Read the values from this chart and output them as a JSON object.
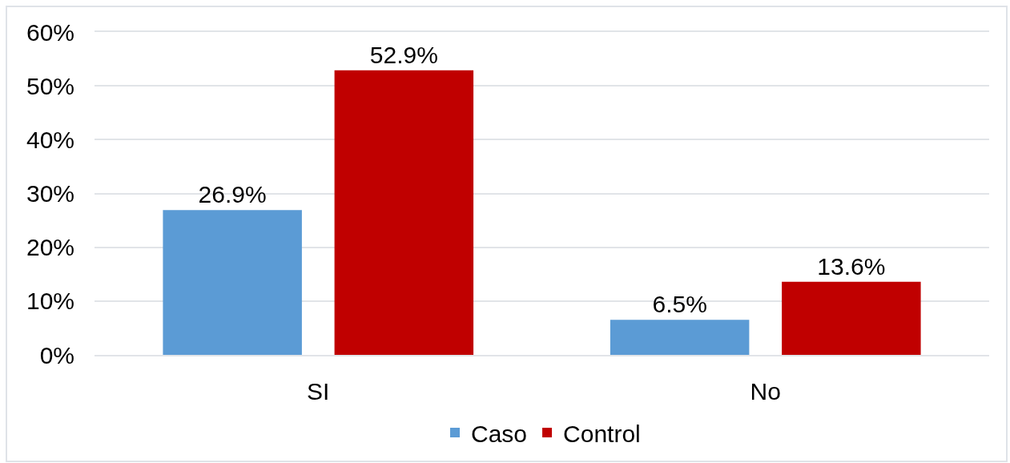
{
  "chart_data": {
    "type": "bar",
    "categories": [
      "SI",
      "No"
    ],
    "series": [
      {
        "name": "Caso",
        "color": "#5b9bd5",
        "values": [
          26.9,
          6.5
        ],
        "value_labels": [
          "26.9%",
          "6.5%"
        ]
      },
      {
        "name": "Control",
        "color": "#c00000",
        "values": [
          52.9,
          13.6
        ],
        "value_labels": [
          "52.9%",
          "13.6%"
        ]
      }
    ],
    "ylim": [
      0,
      60
    ],
    "yticks": [
      {
        "value": 0,
        "label": "0%"
      },
      {
        "value": 10,
        "label": "10%"
      },
      {
        "value": 20,
        "label": "20%"
      },
      {
        "value": 30,
        "label": "30%"
      },
      {
        "value": 40,
        "label": "40%"
      },
      {
        "value": 50,
        "label": "50%"
      },
      {
        "value": 60,
        "label": "60%"
      }
    ],
    "grid": "y",
    "legend": "bottom"
  }
}
